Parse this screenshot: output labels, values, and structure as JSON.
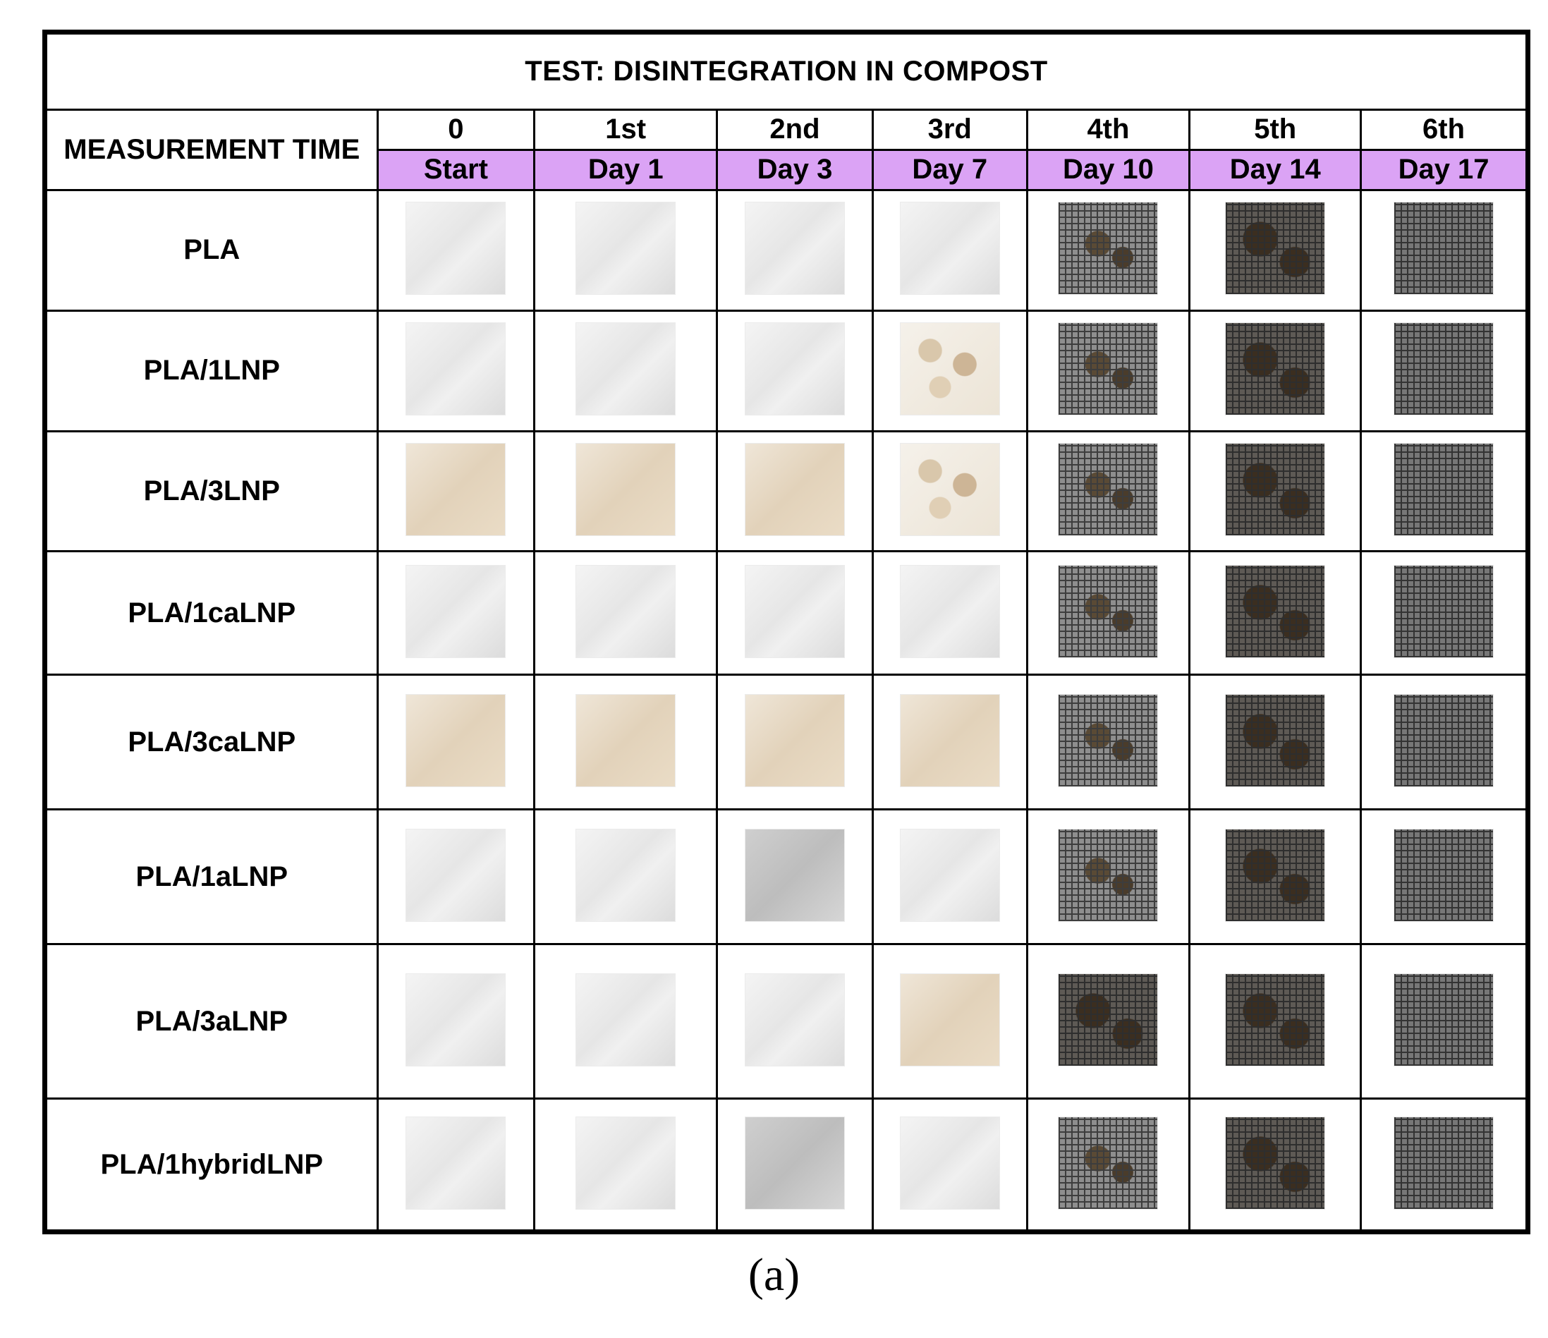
{
  "table": {
    "title": "TEST: DISINTEGRATION IN COMPOST",
    "measurement_label": "MEASUREMENT TIME",
    "time_points": [
      {
        "ordinal": "0",
        "day": "Start"
      },
      {
        "ordinal": "1st",
        "day": "Day 1"
      },
      {
        "ordinal": "2nd",
        "day": "Day 3"
      },
      {
        "ordinal": "3rd",
        "day": "Day 7"
      },
      {
        "ordinal": "4th",
        "day": "Day 10"
      },
      {
        "ordinal": "5th",
        "day": "Day 14"
      },
      {
        "ordinal": "6th",
        "day": "Day 17"
      }
    ],
    "samples": [
      "PLA",
      "PLA/1LNP",
      "PLA/3LNP",
      "PLA/1caLNP",
      "PLA/3caLNP",
      "PLA/1aLNP",
      "PLA/3aLNP",
      "PLA/1hybridLNP"
    ],
    "day_header_color": "#dba3f5"
  },
  "caption": "(a)"
}
